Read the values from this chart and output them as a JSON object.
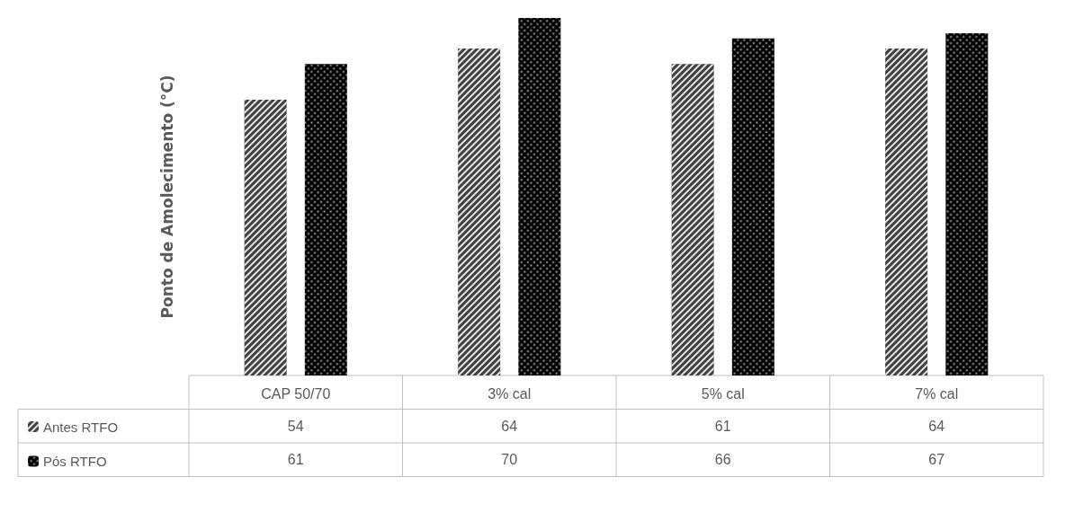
{
  "chart_data": {
    "type": "bar",
    "ylabel": "Ponto de Amolecimento (°C)",
    "categories": [
      "CAP 50/70",
      "3% cal",
      "5% cal",
      "7% cal"
    ],
    "series": [
      {
        "name": "Antes RTFO",
        "color": "#404040",
        "values": [
          54,
          64,
          61,
          64
        ]
      },
      {
        "name": "Pós RTFO",
        "color": "#000000",
        "values": [
          61,
          70,
          66,
          67
        ]
      }
    ],
    "tick_labels": "x",
    "data_labels": true,
    "legend": "bottom left",
    "grid": false
  }
}
